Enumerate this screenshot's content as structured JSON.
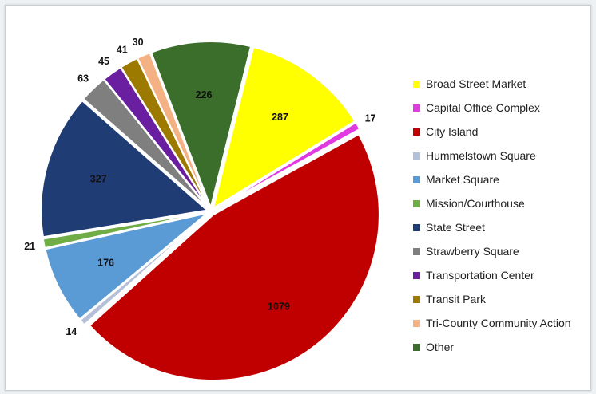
{
  "chart_data": {
    "type": "pie",
    "title": "",
    "slices": [
      {
        "label": "Broad Street Market",
        "value": 287,
        "color": "#ffff00"
      },
      {
        "label": "Capital Office Complex",
        "value": 17,
        "color": "#e03ae0"
      },
      {
        "label": "City Island",
        "value": 1079,
        "color": "#c00000"
      },
      {
        "label": "Hummelstown Square",
        "value": 14,
        "color": "#b4c0d8"
      },
      {
        "label": "Market Square",
        "value": 176,
        "color": "#5b9bd5"
      },
      {
        "label": "Mission/Courthouse",
        "value": 21,
        "color": "#70ad47"
      },
      {
        "label": "State Street",
        "value": 327,
        "color": "#1f3c74"
      },
      {
        "label": "Strawberry Square",
        "value": 63,
        "color": "#7f7f7f"
      },
      {
        "label": "Transportation Center",
        "value": 45,
        "color": "#6a1fa0"
      },
      {
        "label": "Transit Park",
        "value": 41,
        "color": "#9c7a00"
      },
      {
        "label": "Tri-County Community Action",
        "value": 30,
        "color": "#f4b183"
      },
      {
        "label": "Other",
        "value": 226,
        "color": "#3b6e2a"
      }
    ],
    "legend_position": "right"
  }
}
